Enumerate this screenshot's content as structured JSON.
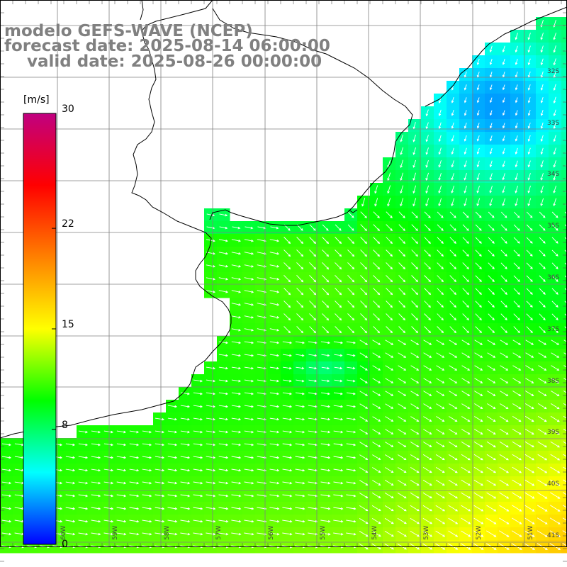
{
  "title": {
    "line1": "modelo GEFS-WAVE (NCEP)",
    "line2": "forecast date: 2025-08-14 06:00:00",
    "line3": "    valid date: 2025-08-26 00:00:00"
  },
  "colorbar": {
    "unit": "[m/s]",
    "ticks": [
      {
        "label": "30",
        "value": 30
      },
      {
        "label": "22",
        "value": 22
      },
      {
        "label": "15",
        "value": 15
      },
      {
        "label": "8",
        "value": 8
      },
      {
        "label": "0",
        "value": 0
      }
    ],
    "colors": [
      "#0000ff",
      "#0080ff",
      "#00ffff",
      "#00ff80",
      "#00ff00",
      "#80ff00",
      "#ffff00",
      "#ffc000",
      "#ff8000",
      "#ff4000",
      "#ff0000",
      "#e00040",
      "#c00080"
    ]
  },
  "axes": {
    "lat_labels": [
      "32S",
      "33S",
      "34S",
      "35S",
      "36S",
      "37S",
      "38S",
      "39S",
      "40S",
      "41S"
    ],
    "lon_labels": [
      "60W",
      "59W",
      "58W",
      "57W",
      "56W",
      "55W",
      "54W",
      "53W",
      "52W",
      "51W"
    ]
  },
  "colors": {
    "land": "#ffffff",
    "coast": "#000000",
    "grid": "#808080",
    "title": "#808080",
    "arrow": "#ffffff"
  }
}
